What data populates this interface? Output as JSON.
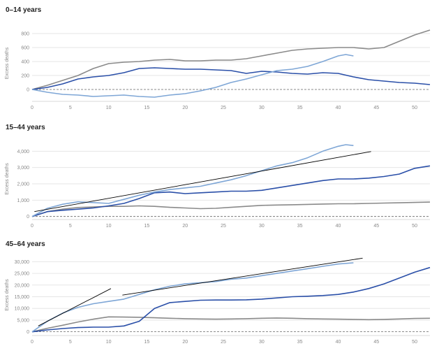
{
  "colors": {
    "series_0_14_a": "#8a8a8a",
    "series_0_14_b": "#2a4fa8",
    "series_0_14_c": "#7ea6d6",
    "grid": "#e6e6e6",
    "baseline": "#666666",
    "annotation": "#000000"
  },
  "chart_data": [
    {
      "type": "line",
      "title": "0–14 years",
      "ylabel": "Excess deaths",
      "xlim": [
        0,
        52
      ],
      "ylim": [
        -150,
        900
      ],
      "x_ticks": [
        0,
        5,
        10,
        15,
        20,
        25,
        30,
        35,
        40,
        45,
        50
      ],
      "y_ticks": [
        0,
        200,
        400,
        600,
        800
      ],
      "y_tick_labels": [
        "0",
        "200",
        "400",
        "600",
        "800"
      ],
      "series": [
        {
          "color": "#8a8a8a",
          "x": [
            0,
            2,
            4,
            6,
            8,
            10,
            12,
            14,
            16,
            18,
            20,
            22,
            24,
            26,
            28,
            30,
            32,
            34,
            36,
            38,
            40,
            42,
            44,
            46,
            48,
            50,
            52
          ],
          "y": [
            0,
            60,
            130,
            200,
            300,
            370,
            390,
            400,
            420,
            430,
            410,
            410,
            420,
            420,
            440,
            480,
            520,
            560,
            580,
            590,
            600,
            600,
            580,
            600,
            690,
            780,
            850
          ]
        },
        {
          "color": "#2a4fa8",
          "x": [
            0,
            2,
            4,
            6,
            8,
            10,
            12,
            14,
            16,
            18,
            20,
            22,
            24,
            26,
            28,
            30,
            32,
            34,
            36,
            38,
            40,
            42,
            44,
            46,
            48,
            50,
            52
          ],
          "y": [
            0,
            30,
            80,
            150,
            180,
            200,
            240,
            300,
            310,
            300,
            290,
            290,
            280,
            270,
            230,
            260,
            250,
            230,
            220,
            240,
            230,
            180,
            140,
            120,
            100,
            90,
            70
          ]
        },
        {
          "color": "#7ea6d6",
          "x": [
            0,
            2,
            4,
            6,
            8,
            10,
            12,
            14,
            16,
            18,
            20,
            22,
            24,
            26,
            28,
            30,
            32,
            34,
            36,
            38,
            40,
            41,
            42
          ],
          "y": [
            0,
            -40,
            -70,
            -80,
            -100,
            -90,
            -80,
            -100,
            -110,
            -80,
            -60,
            -20,
            30,
            100,
            150,
            210,
            270,
            290,
            330,
            400,
            480,
            500,
            480
          ]
        }
      ],
      "annotations": []
    },
    {
      "type": "line",
      "title": "15–44 years",
      "ylabel": "Excess deaths",
      "xlim": [
        0,
        52
      ],
      "ylim": [
        -100,
        4700
      ],
      "x_ticks": [
        0,
        5,
        10,
        15,
        20,
        25,
        30,
        35,
        40,
        45,
        50
      ],
      "y_ticks": [
        0,
        1000,
        2000,
        3000,
        4000
      ],
      "y_tick_labels": [
        "0",
        "1,000",
        "2,000",
        "3,000",
        "4,000"
      ],
      "series": [
        {
          "color": "#8a8a8a",
          "x": [
            0,
            2,
            4,
            6,
            8,
            10,
            12,
            14,
            16,
            18,
            20,
            22,
            24,
            26,
            28,
            30,
            32,
            34,
            36,
            38,
            40,
            42,
            44,
            46,
            48,
            50,
            52
          ],
          "y": [
            0,
            300,
            450,
            550,
            580,
            620,
            620,
            650,
            620,
            560,
            520,
            480,
            500,
            560,
            620,
            680,
            700,
            720,
            740,
            760,
            780,
            780,
            800,
            820,
            840,
            860,
            880
          ]
        },
        {
          "color": "#2a4fa8",
          "x": [
            0,
            2,
            4,
            6,
            8,
            10,
            12,
            14,
            16,
            18,
            20,
            22,
            24,
            26,
            28,
            30,
            32,
            34,
            36,
            38,
            40,
            42,
            44,
            46,
            48,
            50,
            52
          ],
          "y": [
            0,
            300,
            380,
            450,
            520,
            650,
            800,
            1100,
            1450,
            1500,
            1400,
            1450,
            1500,
            1550,
            1550,
            1600,
            1750,
            1900,
            2050,
            2200,
            2300,
            2300,
            2350,
            2450,
            2600,
            2950,
            3100
          ]
        },
        {
          "color": "#7ea6d6",
          "x": [
            0,
            2,
            4,
            6,
            8,
            10,
            12,
            14,
            16,
            18,
            20,
            22,
            24,
            26,
            28,
            30,
            32,
            34,
            36,
            38,
            40,
            41,
            42
          ],
          "y": [
            0,
            500,
            750,
            900,
            850,
            800,
            1050,
            1300,
            1500,
            1650,
            1750,
            1850,
            2050,
            2250,
            2500,
            2800,
            3100,
            3300,
            3600,
            4000,
            4300,
            4400,
            4350
          ]
        }
      ],
      "annotations": [
        {
          "x1": 0.3,
          "y1": 300,
          "x2": 44.3,
          "y2": 3980
        }
      ]
    },
    {
      "type": "line",
      "title": "45–64 years",
      "ylabel": "Excess deaths",
      "xlim": [
        0,
        52
      ],
      "ylim": [
        -1000,
        32500
      ],
      "x_ticks": [
        0,
        5,
        10,
        15,
        20,
        25,
        30,
        35,
        40,
        45,
        50
      ],
      "y_ticks": [
        0,
        5000,
        10000,
        15000,
        20000,
        25000,
        30000
      ],
      "y_tick_labels": [
        "0",
        "5,000",
        "10,000",
        "15,000",
        "20,000",
        "25,000",
        "30,000"
      ],
      "series": [
        {
          "color": "#8a8a8a",
          "x": [
            0,
            2,
            4,
            6,
            8,
            10,
            12,
            14,
            16,
            18,
            20,
            22,
            24,
            26,
            28,
            30,
            32,
            34,
            36,
            38,
            40,
            42,
            44,
            46,
            48,
            50,
            52
          ],
          "y": [
            0,
            1500,
            2800,
            4200,
            5400,
            6400,
            6300,
            6200,
            6000,
            5800,
            5600,
            5500,
            5400,
            5500,
            5600,
            5800,
            5900,
            5800,
            5600,
            5500,
            5400,
            5300,
            5200,
            5300,
            5500,
            5700,
            5800
          ]
        },
        {
          "color": "#2a4fa8",
          "x": [
            0,
            2,
            4,
            6,
            8,
            10,
            12,
            14,
            16,
            18,
            20,
            22,
            24,
            26,
            28,
            30,
            32,
            34,
            36,
            38,
            40,
            42,
            44,
            46,
            48,
            50,
            52
          ],
          "y": [
            0,
            800,
            1400,
            1800,
            2000,
            2000,
            2500,
            4500,
            10000,
            12500,
            13000,
            13500,
            13600,
            13600,
            13700,
            14000,
            14500,
            15000,
            15200,
            15500,
            16000,
            17000,
            18500,
            20500,
            23000,
            25500,
            27500
          ]
        },
        {
          "color": "#7ea6d6",
          "x": [
            0,
            2,
            4,
            6,
            8,
            10,
            12,
            14,
            16,
            18,
            20,
            22,
            24,
            26,
            28,
            30,
            32,
            34,
            36,
            38,
            40,
            42
          ],
          "y": [
            0,
            4500,
            8000,
            10500,
            12000,
            13000,
            14000,
            16000,
            18000,
            19500,
            20500,
            21000,
            21500,
            22500,
            23000,
            24000,
            25000,
            26000,
            27000,
            28000,
            29000,
            29500
          ]
        }
      ],
      "annotations": [
        {
          "x1": 0.8,
          "y1": 2500,
          "x2": 10.3,
          "y2": 18500
        },
        {
          "x1": 11.8,
          "y1": 15700,
          "x2": 43.2,
          "y2": 31500
        }
      ]
    }
  ]
}
